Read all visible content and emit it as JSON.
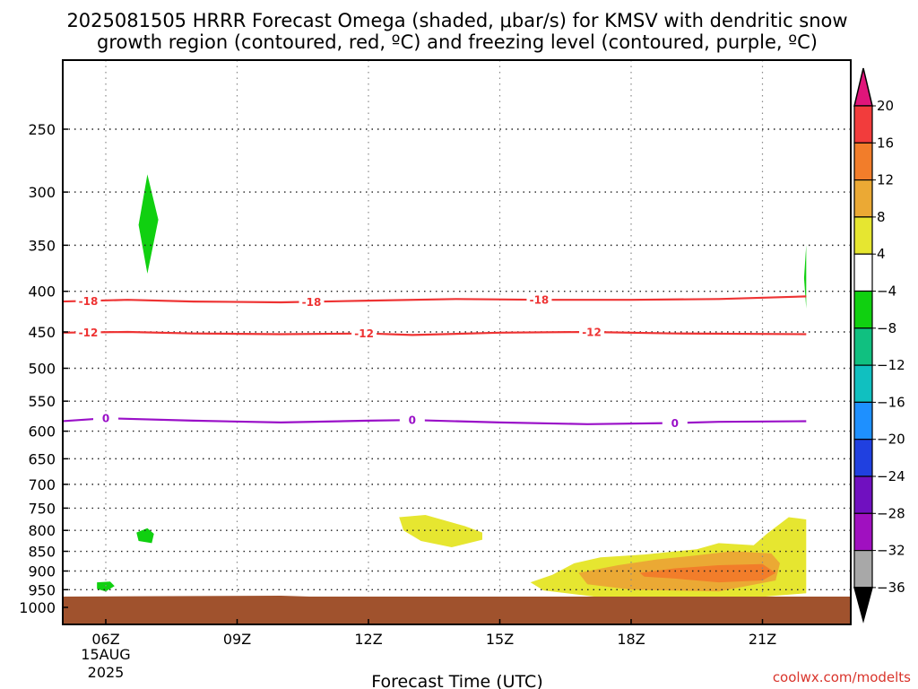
{
  "chart_data": {
    "type": "heatmap",
    "title": "2025081505 HRRR Forecast Omega (shaded, μbar/s) for KMSV with dendritic snow growth region (contoured, red, ºC) and freezing level (contoured, purple, ºC)",
    "title_lines": [
      "2025081505 HRRR Forecast Omega (shaded, μbar/s) for KMSV with dendritic snow",
      "growth region (contoured, red, ºC) and freezing level (contoured, purple, ºC)"
    ],
    "xlabel": "Forecast Time (UTC)",
    "ylabel": "",
    "x_ticks": [
      "06Z",
      "09Z",
      "12Z",
      "15Z",
      "18Z",
      "21Z"
    ],
    "x_tick_hours": [
      6,
      9,
      12,
      15,
      18,
      21
    ],
    "x_date_label": [
      "15AUG",
      "2025"
    ],
    "xlim": [
      5,
      22
    ],
    "y_ticks": [
      250,
      300,
      350,
      400,
      450,
      500,
      550,
      600,
      650,
      700,
      750,
      800,
      850,
      900,
      950,
      1000
    ],
    "ylim": [
      1050,
      200
    ],
    "y_scale": "log-pressure",
    "grid": true,
    "colorbar": {
      "labels": [
        "20",
        "16",
        "12",
        "8",
        "4",
        "−4",
        "−8",
        "−12",
        "−16",
        "−20",
        "−24",
        "−28",
        "−32",
        "−36"
      ],
      "colors": [
        "#e0157a",
        "#f23c3c",
        "#f27d2a",
        "#eba934",
        "#e6e630",
        "#ffffff",
        "#10d010",
        "#10c080",
        "#10c0c0",
        "#1e90ff",
        "#2040e0",
        "#7010c0",
        "#a010c0",
        "#a8a8a8",
        "#000000"
      ]
    },
    "contours": [
      {
        "name": "-18",
        "color": "#ee3333",
        "points": [
          [
            5.0,
            412
          ],
          [
            6.5,
            410
          ],
          [
            8,
            412
          ],
          [
            10,
            413
          ],
          [
            12,
            411
          ],
          [
            14,
            409
          ],
          [
            16,
            410
          ],
          [
            18,
            410
          ],
          [
            20,
            409
          ],
          [
            22,
            406
          ]
        ],
        "label_hours": [
          5.6,
          10.7,
          15.9
        ]
      },
      {
        "name": "-12",
        "color": "#ee3333",
        "points": [
          [
            5.0,
            451
          ],
          [
            6.5,
            450
          ],
          [
            8,
            452
          ],
          [
            10,
            453
          ],
          [
            12,
            452
          ],
          [
            13,
            454
          ],
          [
            15,
            451
          ],
          [
            17,
            450
          ],
          [
            19,
            452
          ],
          [
            22,
            453
          ]
        ],
        "label_hours": [
          5.6,
          11.9,
          17.1
        ]
      },
      {
        "name": "0",
        "color": "#9a10c8",
        "points": [
          [
            5.0,
            583
          ],
          [
            6,
            578
          ],
          [
            8,
            582
          ],
          [
            10,
            585
          ],
          [
            12,
            582
          ],
          [
            13,
            581
          ],
          [
            15,
            585
          ],
          [
            17,
            588
          ],
          [
            19,
            586
          ],
          [
            20,
            584
          ],
          [
            22,
            583
          ]
        ],
        "label_hours": [
          6.0,
          13.0,
          19.0
        ]
      }
    ],
    "shaded_regions": [
      {
        "omega": "-4 to -8",
        "color": "#10d010",
        "points": [
          [
            6.95,
            285
          ],
          [
            7.2,
            325
          ],
          [
            6.95,
            380
          ],
          [
            6.75,
            330
          ]
        ]
      },
      {
        "omega": "-4 to -8",
        "color": "#10d010",
        "points": [
          [
            6.7,
            805
          ],
          [
            6.95,
            795
          ],
          [
            7.1,
            808
          ],
          [
            7.05,
            830
          ],
          [
            6.75,
            825
          ]
        ]
      },
      {
        "omega": "-4 to -8",
        "color": "#10d010",
        "points": [
          [
            5.8,
            930
          ],
          [
            6.1,
            928
          ],
          [
            6.2,
            940
          ],
          [
            6.0,
            955
          ],
          [
            5.8,
            948
          ]
        ]
      },
      {
        "omega": "-4 to -8",
        "color": "#10d010",
        "points": [
          [
            22,
            350
          ],
          [
            22,
            420
          ],
          [
            21.95,
            385
          ]
        ]
      },
      {
        "omega": "4 to 8",
        "color": "#e6e630",
        "points": [
          [
            12.7,
            770
          ],
          [
            13.3,
            765
          ],
          [
            14.2,
            790
          ],
          [
            14.6,
            805
          ],
          [
            14.6,
            822
          ],
          [
            13.9,
            840
          ],
          [
            13.2,
            825
          ],
          [
            12.8,
            800
          ]
        ]
      },
      {
        "omega": "4 to 8",
        "color": "#e6e630",
        "points": [
          [
            15.7,
            930
          ],
          [
            16.2,
            910
          ],
          [
            16.7,
            880
          ],
          [
            17.3,
            865
          ],
          [
            18.3,
            858
          ],
          [
            19.5,
            845
          ],
          [
            20.0,
            830
          ],
          [
            20.8,
            835
          ],
          [
            21.1,
            808
          ],
          [
            21.6,
            770
          ],
          [
            22,
            775
          ],
          [
            22,
            960
          ],
          [
            20.5,
            975
          ],
          [
            18.8,
            975
          ],
          [
            17.2,
            970
          ],
          [
            16.0,
            952
          ]
        ]
      },
      {
        "omega": "8 to 12",
        "color": "#eba934",
        "points": [
          [
            16.8,
            905
          ],
          [
            17.7,
            885
          ],
          [
            18.6,
            870
          ],
          [
            19.5,
            860
          ],
          [
            20.3,
            850
          ],
          [
            21.2,
            855
          ],
          [
            21.4,
            880
          ],
          [
            21.3,
            925
          ],
          [
            20.0,
            955
          ],
          [
            18.0,
            950
          ],
          [
            17.0,
            935
          ]
        ]
      },
      {
        "omega": "12 to 16",
        "color": "#f27d2a",
        "points": [
          [
            18.2,
            905
          ],
          [
            19.0,
            893
          ],
          [
            20.0,
            885
          ],
          [
            21.0,
            882
          ],
          [
            21.3,
            905
          ],
          [
            21.0,
            925
          ],
          [
            20.0,
            930
          ],
          [
            19.0,
            920
          ],
          [
            18.3,
            915
          ]
        ]
      }
    ]
  },
  "credit": "coolwx.com/modelts"
}
